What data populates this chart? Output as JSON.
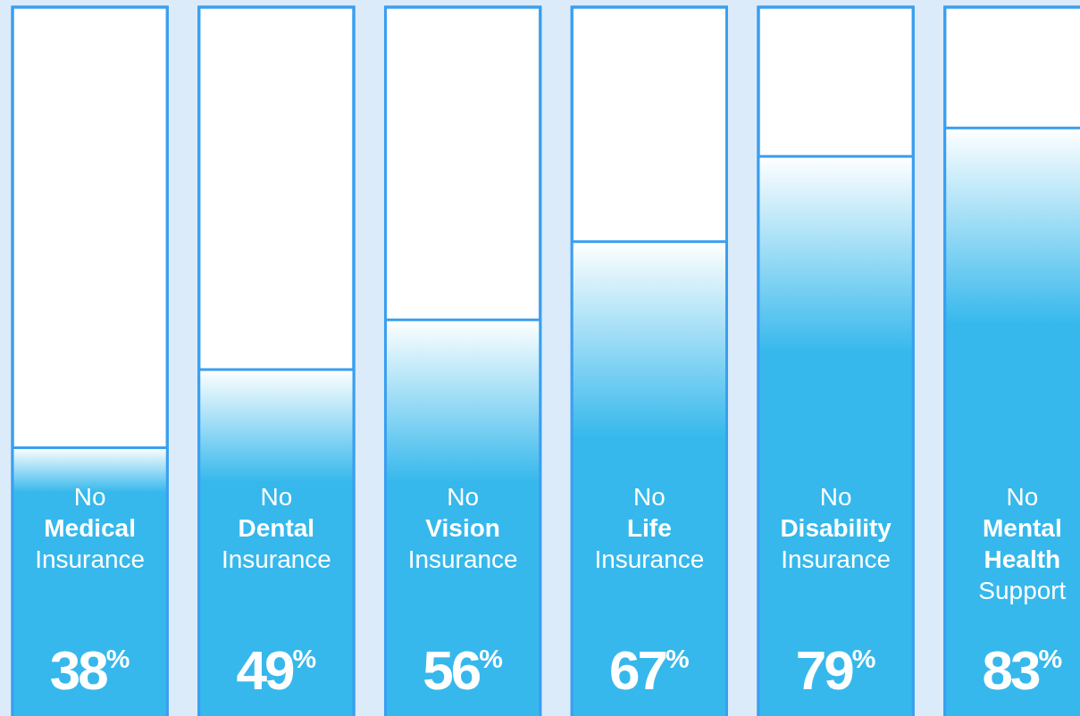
{
  "chart_data": {
    "type": "bar",
    "categories": [
      "No Medical Insurance",
      "No Dental Insurance",
      "No Vision Insurance",
      "No Life Insurance",
      "No Disability Insurance",
      "No Mental Health Support"
    ],
    "values": [
      38,
      49,
      56,
      67,
      79,
      83
    ],
    "value_labels": [
      "38%",
      "49%",
      "56%",
      "67%",
      "79%",
      "83%"
    ],
    "color": "#36b8ec",
    "ylim": [
      0,
      100
    ]
  }
}
